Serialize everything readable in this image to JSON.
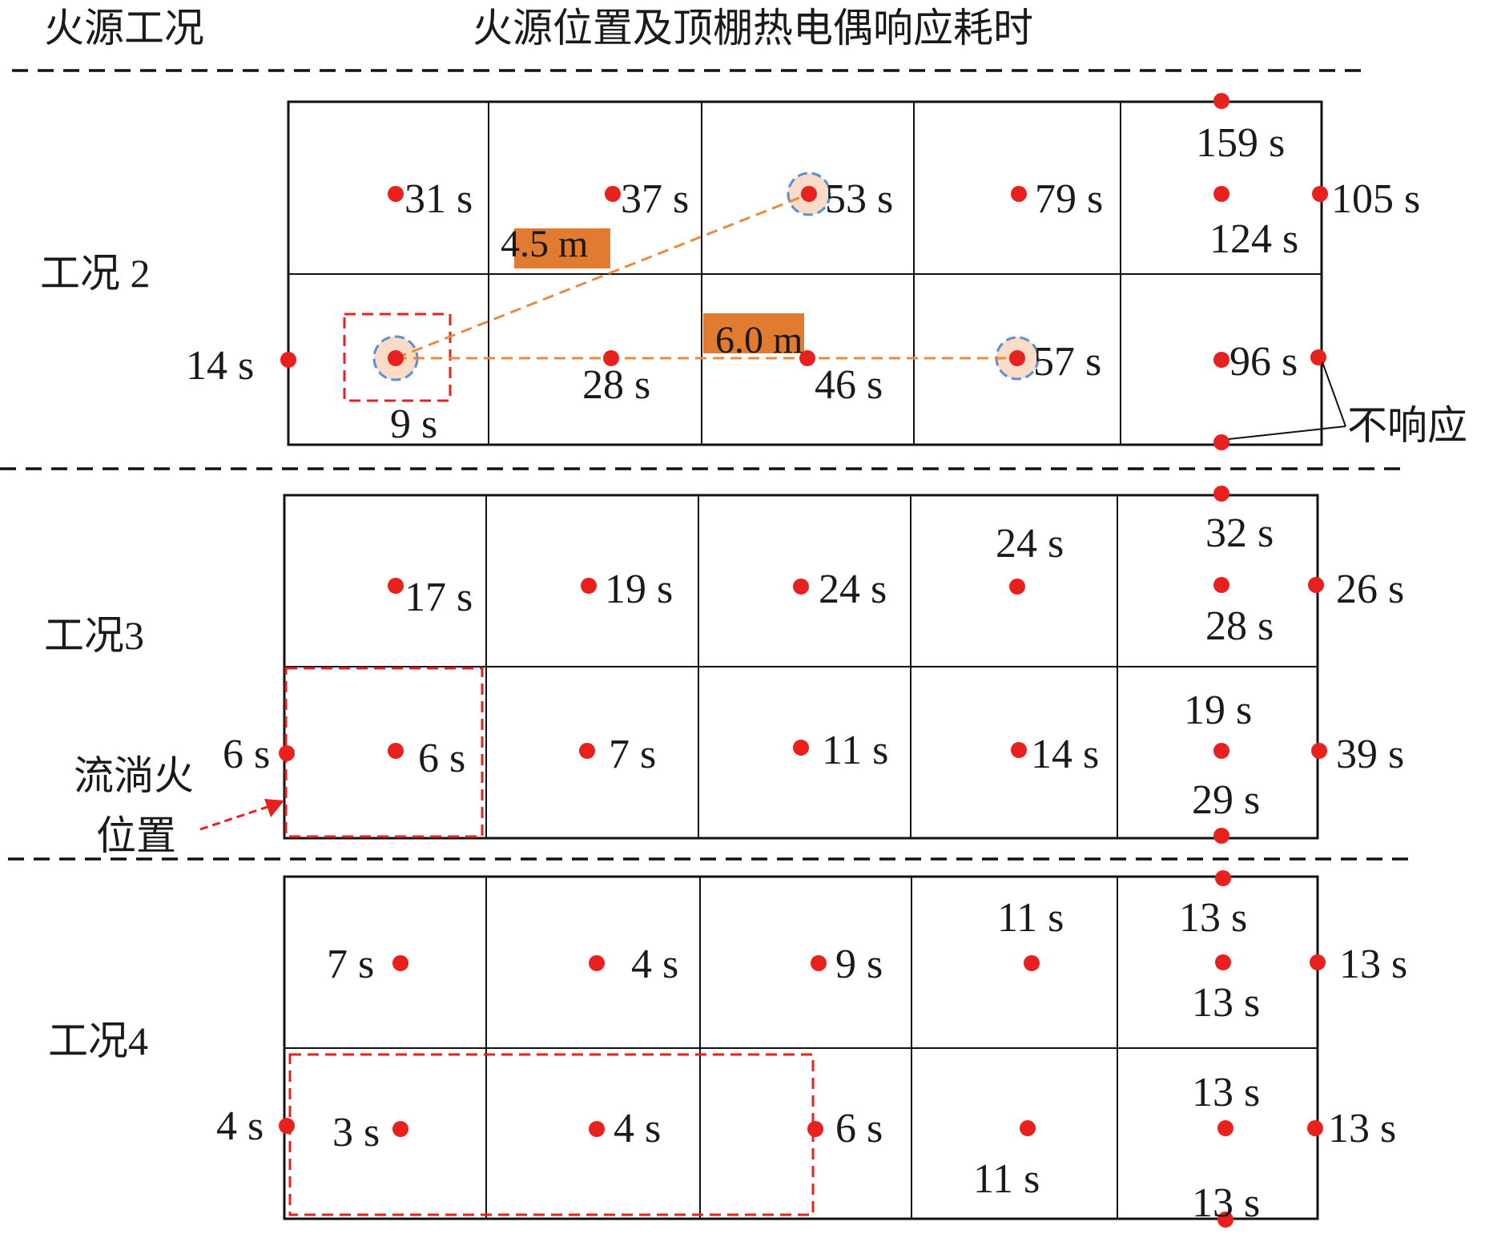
{
  "header": {
    "col1": "火源工况",
    "col2": "火源位置及顶棚热电偶响应耗时"
  },
  "colors": {
    "point": "#e8211f",
    "grid": "#111111",
    "fire_box": "#e8211f",
    "distance_line": "#e98b3f",
    "distance_label_bg": "#e07b30",
    "ring": "#5b8fd6",
    "ring_fill": "#f8dcc8"
  },
  "cases": [
    {
      "label": "工况 2",
      "fire_box_note": "",
      "times": [
        "31 s",
        "37 s",
        "53 s",
        "79 s",
        "159 s",
        "124 s",
        "105 s",
        "14 s",
        "9 s",
        "28 s",
        "46 s",
        "57 s",
        "96 s",
        "",
        ""
      ],
      "distances": [
        "4.5 m",
        "6.0 m"
      ],
      "no_response_label": "不响应"
    },
    {
      "label": "工况3",
      "times": [
        "17 s",
        "19 s",
        "24 s",
        "24 s",
        "32 s",
        "28 s",
        "26 s",
        "6 s",
        "6 s",
        "7 s",
        "11 s",
        "14 s",
        "19 s",
        "29 s",
        "39 s"
      ],
      "pool_fire_label_line1": "流淌火",
      "pool_fire_label_line2": "位置"
    },
    {
      "label": "工况4",
      "times": [
        "7 s",
        "4 s",
        "9 s",
        "11 s",
        "13 s",
        "13 s",
        "13 s",
        "4 s",
        "3 s",
        "4 s",
        "6 s",
        "11 s",
        "13 s",
        "13 s",
        "13 s"
      ]
    }
  ]
}
